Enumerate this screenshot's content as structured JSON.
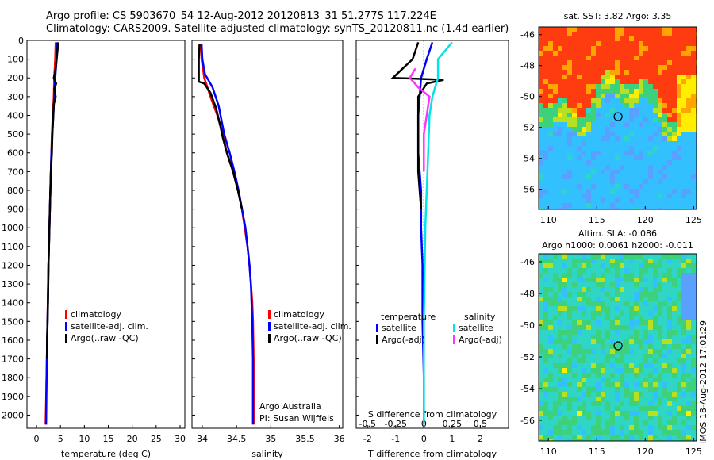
{
  "header": {
    "line1": "Argo profile: CS 5903670_54 12-Aug-2012 20120813_31 51.277S 117.224E",
    "line2": "Climatology: CARS2009. Satellite-adjusted climatology: synTS_20120811.nc (1.4d earlier)"
  },
  "stamp": "IMOS 18-Aug-2012 17:01:29",
  "colors": {
    "climatology": "#ff0000",
    "satellite": "#0000ff",
    "argo": "#000000",
    "sal_satellite": "#00e5e5",
    "sal_argo": "#ff33ff"
  },
  "chart_data": [
    {
      "type": "line",
      "id": "temperature",
      "xlabel": "temperature (deg C)",
      "x_ticks": [
        0,
        5,
        10,
        15,
        20,
        25,
        30
      ],
      "xlim": [
        -2,
        31
      ],
      "ylim": [
        2070,
        0
      ],
      "y_ticks": [
        0,
        100,
        200,
        300,
        400,
        500,
        600,
        700,
        800,
        900,
        1000,
        1100,
        1200,
        1300,
        1400,
        1500,
        1600,
        1700,
        1800,
        1900,
        2000
      ],
      "legend": [
        "climatology",
        "satellite-adj. clim.",
        "Argo(..raw -QC)"
      ],
      "series": [
        {
          "name": "climatology",
          "color": "#ff0000",
          "points": [
            [
              4.0,
              10
            ],
            [
              3.9,
              100
            ],
            [
              3.7,
              200
            ],
            [
              3.6,
              300
            ],
            [
              3.4,
              400
            ],
            [
              3.2,
              500
            ],
            [
              3.1,
              600
            ],
            [
              2.9,
              800
            ],
            [
              2.7,
              1000
            ],
            [
              2.5,
              1200
            ],
            [
              2.3,
              1500
            ],
            [
              2.1,
              1800
            ],
            [
              1.9,
              2050
            ]
          ]
        },
        {
          "name": "satellite-adj. clim.",
          "color": "#0000ff",
          "points": [
            [
              4.3,
              10
            ],
            [
              4.2,
              100
            ],
            [
              3.9,
              200
            ],
            [
              3.7,
              300
            ],
            [
              3.5,
              400
            ],
            [
              3.3,
              500
            ],
            [
              3.1,
              600
            ],
            [
              2.9,
              800
            ],
            [
              2.7,
              1000
            ],
            [
              2.5,
              1200
            ],
            [
              2.3,
              1500
            ],
            [
              2.1,
              1800
            ],
            [
              2.0,
              2050
            ]
          ]
        },
        {
          "name": "Argo(..raw -QC)",
          "color": "#000000",
          "points": [
            [
              4.5,
              10
            ],
            [
              4.4,
              50
            ],
            [
              4.2,
              100
            ],
            [
              4.0,
              150
            ],
            [
              3.6,
              200
            ],
            [
              4.1,
              230
            ],
            [
              3.7,
              260
            ],
            [
              4.0,
              300
            ],
            [
              3.6,
              340
            ],
            [
              3.5,
              400
            ],
            [
              3.3,
              500
            ],
            [
              3.2,
              600
            ],
            [
              3.0,
              700
            ],
            [
              2.9,
              800
            ],
            [
              2.7,
              1000
            ],
            [
              2.5,
              1200
            ],
            [
              2.4,
              1400
            ],
            [
              2.3,
              1500
            ],
            [
              2.2,
              1600
            ],
            [
              2.2,
              1700
            ]
          ]
        }
      ]
    },
    {
      "type": "line",
      "id": "salinity",
      "xlabel": "salinity",
      "x_ticks": [
        34,
        34.5,
        35,
        35.5,
        36
      ],
      "xlim": [
        33.85,
        36.05
      ],
      "ylim": [
        2070,
        0
      ],
      "legend": [
        "climatology",
        "satellite-adj. clim.",
        "Argo(..raw -QC)"
      ],
      "annotation": [
        "Argo Australia",
        "PI: Susan Wijffels"
      ],
      "series": [
        {
          "name": "climatology",
          "color": "#ff0000",
          "points": [
            [
              33.98,
              20
            ],
            [
              33.99,
              100
            ],
            [
              34.03,
              200
            ],
            [
              34.12,
              300
            ],
            [
              34.22,
              400
            ],
            [
              34.3,
              500
            ],
            [
              34.36,
              600
            ],
            [
              34.45,
              700
            ],
            [
              34.52,
              800
            ],
            [
              34.58,
              900
            ],
            [
              34.62,
              1000
            ],
            [
              34.66,
              1100
            ],
            [
              34.69,
              1200
            ],
            [
              34.71,
              1300
            ],
            [
              34.73,
              1400
            ],
            [
              34.74,
              1500
            ],
            [
              34.75,
              1700
            ],
            [
              34.75,
              2050
            ]
          ]
        },
        {
          "name": "satellite-adj. clim.",
          "color": "#0000ff",
          "points": [
            [
              33.99,
              20
            ],
            [
              34.0,
              100
            ],
            [
              34.04,
              180
            ],
            [
              34.15,
              250
            ],
            [
              34.24,
              350
            ],
            [
              34.32,
              500
            ],
            [
              34.4,
              600
            ],
            [
              34.47,
              700
            ],
            [
              34.53,
              800
            ],
            [
              34.58,
              900
            ],
            [
              34.63,
              1000
            ],
            [
              34.66,
              1100
            ],
            [
              34.69,
              1200
            ],
            [
              34.71,
              1300
            ],
            [
              34.72,
              1400
            ],
            [
              34.73,
              1500
            ],
            [
              34.74,
              1700
            ],
            [
              34.74,
              1900
            ],
            [
              34.74,
              2050
            ]
          ]
        },
        {
          "name": "Argo(..raw -QC)",
          "color": "#000000",
          "points": [
            [
              33.96,
              20
            ],
            [
              33.95,
              100
            ],
            [
              33.95,
              220
            ],
            [
              34.03,
              230
            ],
            [
              34.12,
              280
            ],
            [
              34.2,
              360
            ],
            [
              34.26,
              450
            ],
            [
              34.3,
              520
            ],
            [
              34.36,
              600
            ],
            [
              34.45,
              700
            ],
            [
              34.52,
              800
            ],
            [
              34.58,
              900
            ]
          ]
        }
      ]
    },
    {
      "type": "line",
      "id": "differences",
      "xlabel": "T difference from climatology",
      "xlabel_top": "S difference from climatology",
      "x_ticks": [
        -2,
        -1,
        0,
        1,
        2
      ],
      "x_ticks_top": [
        "-0.5",
        "-0.25",
        "0",
        "0.25",
        "0.5"
      ],
      "xlim": [
        -2.4,
        3.0
      ],
      "ylim": [
        2070,
        0
      ],
      "legend_titles": [
        "temperature",
        "salinity"
      ],
      "legend": [
        "satellite",
        "Argo(-adj)",
        "satellite",
        "Argo(-adj)"
      ],
      "series": [
        {
          "name": "satellite",
          "color": "#0000ff",
          "points": [
            [
              0.3,
              10
            ],
            [
              0.1,
              100
            ],
            [
              -0.1,
              200
            ],
            [
              -0.2,
              400
            ],
            [
              -0.2,
              600
            ],
            [
              -0.1,
              800
            ],
            [
              -0.1,
              1000
            ],
            [
              -0.05,
              1200
            ],
            [
              -0.05,
              1500
            ],
            [
              0.0,
              1800
            ],
            [
              0.0,
              2050
            ]
          ]
        },
        {
          "name": "Argo(-adj)",
          "color": "#000000",
          "points": [
            [
              -0.2,
              10
            ],
            [
              -0.4,
              100
            ],
            [
              -1.1,
              200
            ],
            [
              0.7,
              210
            ],
            [
              0.1,
              230
            ],
            [
              -0.2,
              300
            ],
            [
              -0.2,
              500
            ],
            [
              -0.2,
              700
            ],
            [
              -0.1,
              900
            ]
          ]
        },
        {
          "name": "satellite",
          "color": "#00e5e5",
          "points": [
            [
              1.0,
              10
            ],
            [
              0.5,
              100
            ],
            [
              0.5,
              200
            ],
            [
              0.3,
              300
            ],
            [
              0.2,
              400
            ],
            [
              0.15,
              600
            ],
            [
              0.1,
              800
            ],
            [
              0.05,
              1000
            ],
            [
              0.03,
              1200
            ],
            [
              0.0,
              1500
            ],
            [
              0.0,
              2050
            ]
          ]
        },
        {
          "name": "Argo(-adj)",
          "color": "#ff33ff",
          "points": [
            [
              -0.3,
              150
            ],
            [
              -0.5,
              200
            ],
            [
              -0.2,
              250
            ],
            [
              0.2,
              300
            ],
            [
              0.1,
              400
            ],
            [
              0.0,
              500
            ],
            [
              0.0,
              700
            ]
          ]
        }
      ]
    },
    {
      "type": "heatmap",
      "id": "sst-map",
      "title": "sat. SST: 3.82  Argo: 3.35",
      "x_ticks": [
        110,
        115,
        120,
        125
      ],
      "y_ticks": [
        -46,
        -48,
        -50,
        -52,
        -54,
        -56
      ],
      "xlim": [
        109,
        125.3
      ],
      "ylim": [
        -57.3,
        -45.5
      ],
      "marker": [
        117.2,
        -51.3
      ]
    },
    {
      "type": "heatmap",
      "id": "sla-map",
      "title_lines": [
        "Altim. SLA: -0.086",
        "Argo h1000: 0.0061  h2000: -0.011"
      ],
      "x_ticks": [
        110,
        115,
        120,
        125
      ],
      "y_ticks": [
        -46,
        -48,
        -50,
        -52,
        -54,
        -56
      ],
      "xlim": [
        109,
        125.3
      ],
      "ylim": [
        -57.3,
        -45.5
      ],
      "marker": [
        117.2,
        -51.3
      ]
    }
  ]
}
